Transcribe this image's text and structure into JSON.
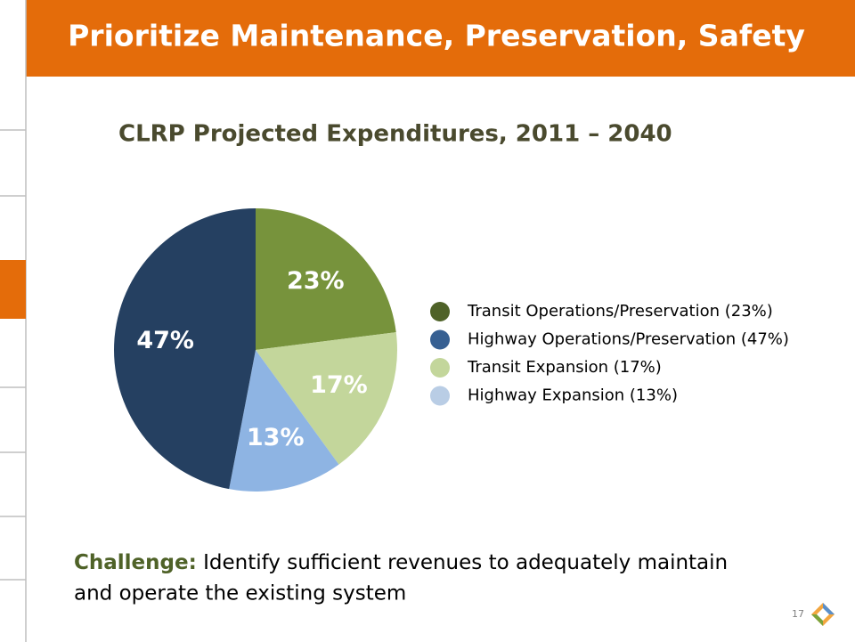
{
  "header": {
    "title": "Prioritize Maintenance, Preservation, Safety"
  },
  "chart_data": {
    "type": "pie",
    "title": "CLRP Projected Expenditures, 2011 – 2040",
    "values": [
      23,
      17,
      13,
      47
    ],
    "value_labels": [
      "23%",
      "17%",
      "13%",
      "47%"
    ],
    "colors": [
      "#77933c",
      "#c3d69b",
      "#8eb4e3",
      "#254061"
    ],
    "legend": [
      {
        "label": "Transit Operations/Preservation (23%)",
        "color": "#4f6228"
      },
      {
        "label": "Highway Operations/Preservation (47%)",
        "color": "#376092"
      },
      {
        "label": "Transit Expansion (17%)",
        "color": "#c3d69b"
      },
      {
        "label": "Highway Expansion (13%)",
        "color": "#b9cde5"
      }
    ]
  },
  "footer": {
    "challenge_label": "Challenge:",
    "challenge_text": "Identify sufficient revenues to adequately maintain",
    "challenge_text_2": "and operate the existing system",
    "slide_number": "17"
  }
}
